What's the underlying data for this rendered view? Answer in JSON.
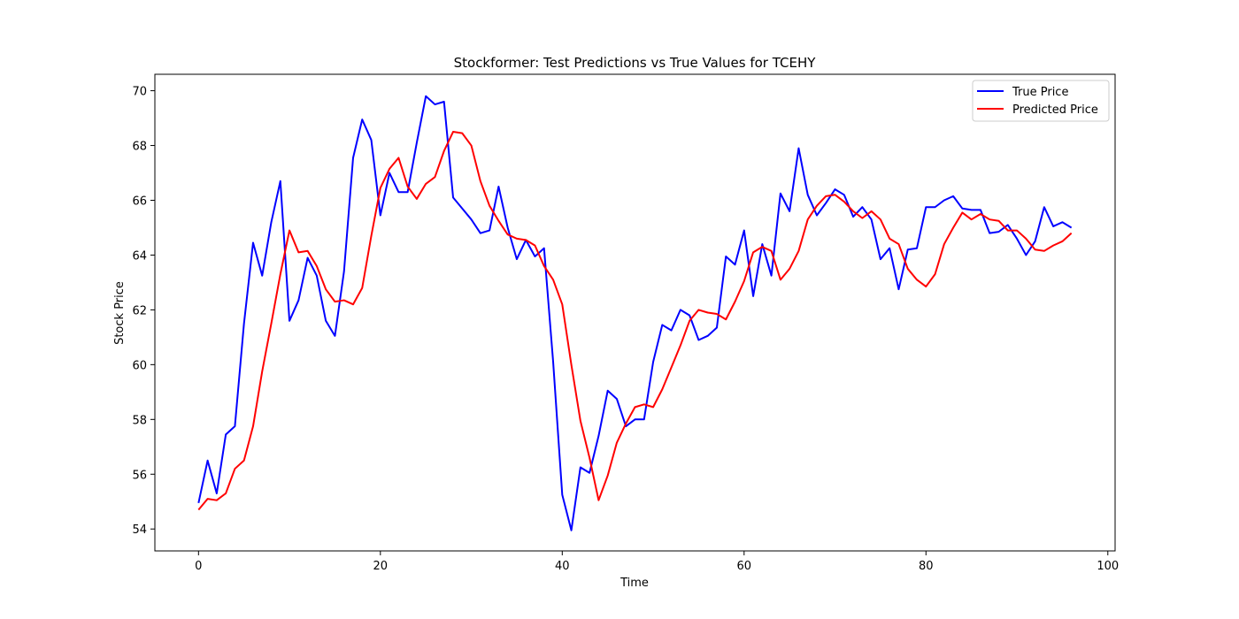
{
  "chart_data": {
    "type": "line",
    "title": "Stockformer: Test Predictions vs True Values for TCEHY",
    "xlabel": "Time",
    "ylabel": "Stock Price",
    "xlim": [
      -4.8,
      100.8
    ],
    "ylim": [
      53.2,
      70.6
    ],
    "xticks": [
      0,
      20,
      40,
      60,
      80,
      100
    ],
    "yticks": [
      54,
      56,
      58,
      60,
      62,
      64,
      66,
      68,
      70
    ],
    "grid": false,
    "legend_position": "top-right",
    "series": [
      {
        "name": "True Price",
        "color": "#0000ff",
        "values": [
          54.95,
          56.5,
          55.3,
          57.45,
          57.75,
          61.5,
          64.45,
          63.25,
          65.2,
          66.7,
          61.6,
          62.35,
          63.9,
          63.25,
          61.6,
          61.05,
          63.4,
          67.55,
          68.95,
          68.2,
          65.45,
          67.0,
          66.3,
          66.3,
          68.1,
          69.8,
          69.5,
          69.6,
          66.1,
          65.7,
          65.3,
          64.8,
          64.9,
          66.5,
          65.0,
          63.85,
          64.55,
          63.95,
          64.25,
          60.1,
          55.25,
          53.95,
          56.25,
          56.05,
          57.4,
          59.05,
          58.75,
          57.75,
          58.0,
          58.0,
          60.1,
          61.45,
          61.25,
          62.0,
          61.8,
          60.9,
          61.05,
          61.35,
          63.95,
          63.65,
          64.9,
          62.5,
          64.4,
          63.25,
          66.25,
          65.6,
          67.9,
          66.2,
          65.45,
          65.9,
          66.4,
          66.2,
          65.4,
          65.75,
          65.3,
          63.85,
          64.25,
          62.75,
          64.2,
          64.25,
          65.75,
          65.75,
          66.0,
          66.15,
          65.7,
          65.65,
          65.65,
          64.8,
          64.85,
          65.1,
          64.6,
          64.0,
          64.5,
          65.75,
          65.05,
          65.2,
          65.0
        ]
      },
      {
        "name": "Predicted Price",
        "color": "#ff0000",
        "values": [
          54.7,
          55.1,
          55.05,
          55.3,
          56.2,
          56.5,
          57.75,
          59.75,
          61.5,
          63.3,
          64.9,
          64.1,
          64.15,
          63.6,
          62.75,
          62.3,
          62.35,
          62.2,
          62.8,
          64.7,
          66.45,
          67.15,
          67.55,
          66.5,
          66.05,
          66.6,
          66.85,
          67.8,
          68.5,
          68.45,
          68.0,
          66.7,
          65.8,
          65.25,
          64.75,
          64.6,
          64.55,
          64.35,
          63.6,
          63.1,
          62.2,
          60.0,
          57.95,
          56.6,
          55.05,
          55.95,
          57.15,
          57.85,
          58.45,
          58.55,
          58.45,
          59.1,
          59.9,
          60.7,
          61.6,
          62.0,
          61.9,
          61.85,
          61.65,
          62.3,
          63.05,
          64.1,
          64.3,
          64.15,
          63.1,
          63.5,
          64.15,
          65.3,
          65.8,
          66.15,
          66.2,
          65.95,
          65.6,
          65.35,
          65.6,
          65.3,
          64.6,
          64.4,
          63.5,
          63.1,
          62.85,
          63.3,
          64.4,
          65.0,
          65.55,
          65.3,
          65.5,
          65.3,
          65.25,
          64.9,
          64.9,
          64.6,
          64.2,
          64.15,
          64.35,
          64.5,
          64.8
        ]
      }
    ]
  }
}
